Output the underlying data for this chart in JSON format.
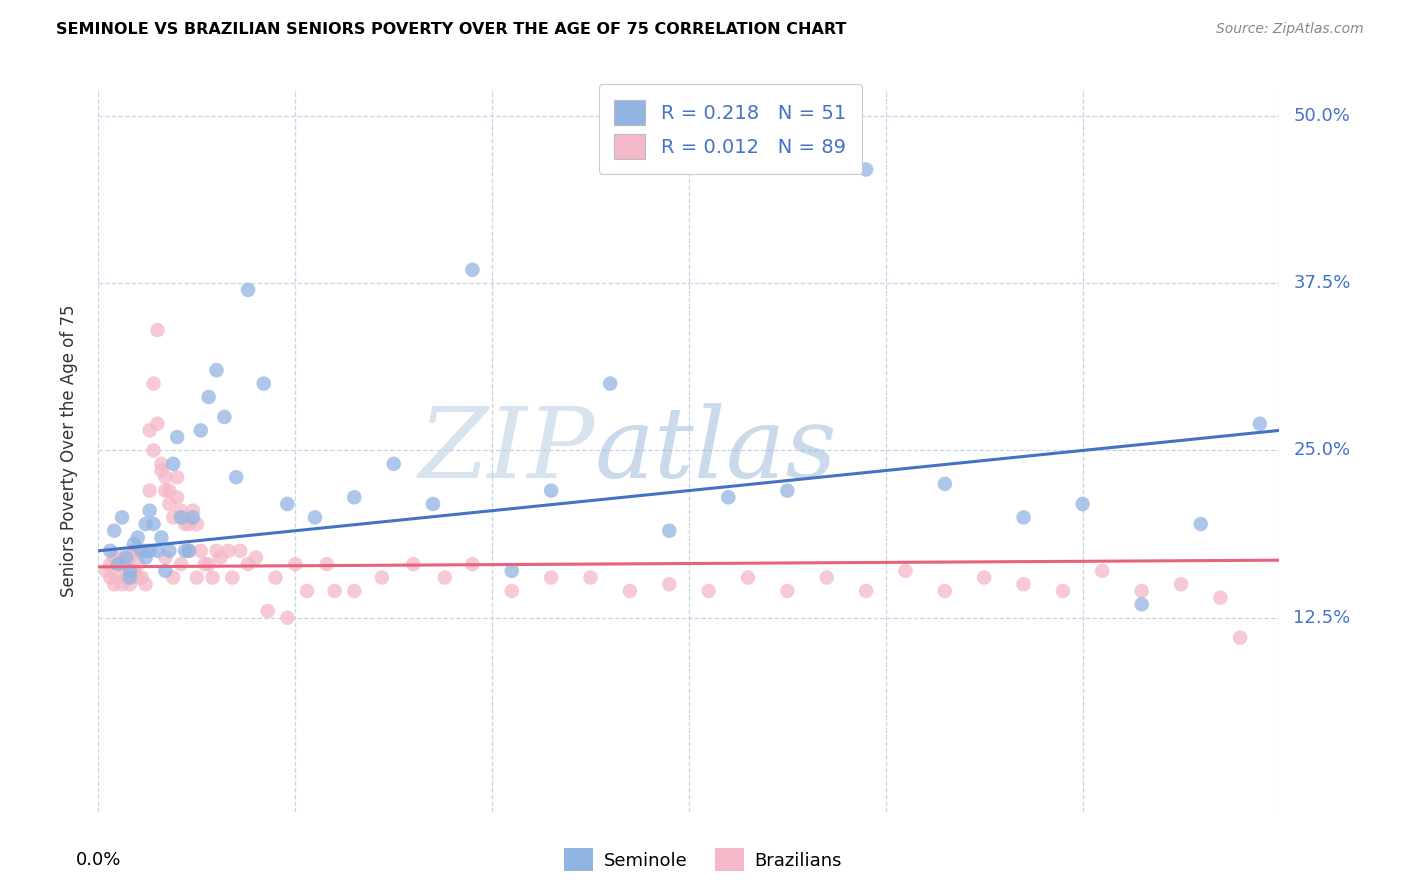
{
  "title": "SEMINOLE VS BRAZILIAN SENIORS POVERTY OVER THE AGE OF 75 CORRELATION CHART",
  "source": "Source: ZipAtlas.com",
  "ylabel": "Seniors Poverty Over the Age of 75",
  "ytick_labels": [
    "12.5%",
    "25.0%",
    "37.5%",
    "50.0%"
  ],
  "ytick_values": [
    0.125,
    0.25,
    0.375,
    0.5
  ],
  "xlim": [
    0.0,
    0.3
  ],
  "ylim": [
    -0.02,
    0.52
  ],
  "seminole_color": "#92b4e3",
  "seminole_color_line": "#4472c4",
  "brazilian_color": "#f4b8c8",
  "brazilian_color_line": "#e8637a",
  "watermark_zip": "ZIP",
  "watermark_atlas": "atlas",
  "legend_r1": "R = 0.218",
  "legend_n1": "N = 51",
  "legend_r2": "R = 0.012",
  "legend_n2": "N = 89",
  "seminole_label": "Seminole",
  "brazilian_label": "Brazilians",
  "sem_line_x0": 0.0,
  "sem_line_y0": 0.175,
  "sem_line_x1": 0.3,
  "sem_line_y1": 0.265,
  "bra_line_x0": 0.0,
  "bra_line_y0": 0.163,
  "bra_line_x1": 0.3,
  "bra_line_y1": 0.168,
  "seminole_x": [
    0.003,
    0.004,
    0.005,
    0.006,
    0.007,
    0.008,
    0.008,
    0.009,
    0.01,
    0.011,
    0.012,
    0.012,
    0.013,
    0.013,
    0.014,
    0.015,
    0.016,
    0.017,
    0.018,
    0.019,
    0.02,
    0.021,
    0.022,
    0.023,
    0.024,
    0.026,
    0.028,
    0.03,
    0.032,
    0.035,
    0.038,
    0.042,
    0.048,
    0.055,
    0.065,
    0.075,
    0.085,
    0.095,
    0.105,
    0.115,
    0.13,
    0.145,
    0.16,
    0.175,
    0.195,
    0.215,
    0.235,
    0.25,
    0.265,
    0.28,
    0.295
  ],
  "seminole_y": [
    0.175,
    0.19,
    0.165,
    0.2,
    0.17,
    0.16,
    0.155,
    0.18,
    0.185,
    0.175,
    0.195,
    0.17,
    0.175,
    0.205,
    0.195,
    0.175,
    0.185,
    0.16,
    0.175,
    0.24,
    0.26,
    0.2,
    0.175,
    0.175,
    0.2,
    0.265,
    0.29,
    0.31,
    0.275,
    0.23,
    0.37,
    0.3,
    0.21,
    0.2,
    0.215,
    0.24,
    0.21,
    0.385,
    0.16,
    0.22,
    0.3,
    0.19,
    0.215,
    0.22,
    0.46,
    0.225,
    0.2,
    0.21,
    0.135,
    0.195,
    0.27
  ],
  "brazilian_x": [
    0.002,
    0.003,
    0.003,
    0.004,
    0.004,
    0.005,
    0.005,
    0.006,
    0.006,
    0.007,
    0.007,
    0.008,
    0.008,
    0.009,
    0.009,
    0.01,
    0.01,
    0.011,
    0.011,
    0.012,
    0.012,
    0.013,
    0.013,
    0.014,
    0.014,
    0.015,
    0.015,
    0.016,
    0.016,
    0.017,
    0.017,
    0.018,
    0.018,
    0.019,
    0.02,
    0.02,
    0.021,
    0.022,
    0.023,
    0.024,
    0.025,
    0.026,
    0.028,
    0.03,
    0.033,
    0.036,
    0.04,
    0.045,
    0.05,
    0.058,
    0.065,
    0.072,
    0.08,
    0.088,
    0.095,
    0.105,
    0.115,
    0.125,
    0.135,
    0.145,
    0.155,
    0.165,
    0.175,
    0.185,
    0.195,
    0.205,
    0.215,
    0.225,
    0.235,
    0.245,
    0.255,
    0.265,
    0.275,
    0.285,
    0.017,
    0.019,
    0.021,
    0.023,
    0.025,
    0.027,
    0.029,
    0.031,
    0.034,
    0.038,
    0.043,
    0.048,
    0.053,
    0.06,
    0.29
  ],
  "brazilian_y": [
    0.16,
    0.155,
    0.165,
    0.15,
    0.17,
    0.155,
    0.165,
    0.15,
    0.17,
    0.155,
    0.165,
    0.15,
    0.17,
    0.16,
    0.175,
    0.155,
    0.165,
    0.155,
    0.175,
    0.15,
    0.175,
    0.22,
    0.265,
    0.25,
    0.3,
    0.34,
    0.27,
    0.24,
    0.235,
    0.23,
    0.22,
    0.22,
    0.21,
    0.2,
    0.215,
    0.23,
    0.205,
    0.195,
    0.195,
    0.205,
    0.195,
    0.175,
    0.165,
    0.175,
    0.175,
    0.175,
    0.17,
    0.155,
    0.165,
    0.165,
    0.145,
    0.155,
    0.165,
    0.155,
    0.165,
    0.145,
    0.155,
    0.155,
    0.145,
    0.15,
    0.145,
    0.155,
    0.145,
    0.155,
    0.145,
    0.16,
    0.145,
    0.155,
    0.15,
    0.145,
    0.16,
    0.145,
    0.15,
    0.14,
    0.17,
    0.155,
    0.165,
    0.175,
    0.155,
    0.165,
    0.155,
    0.17,
    0.155,
    0.165,
    0.13,
    0.125,
    0.145,
    0.145,
    0.11
  ]
}
